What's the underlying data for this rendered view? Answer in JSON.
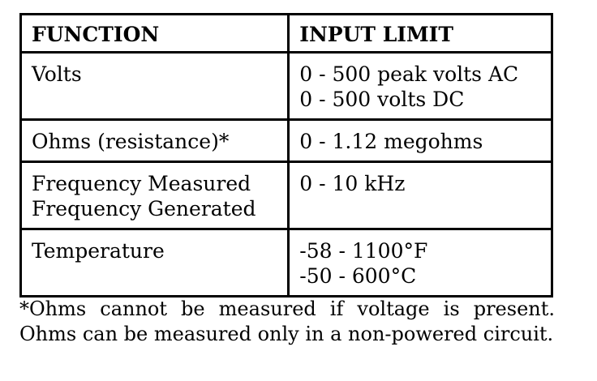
{
  "table": {
    "headers": {
      "function": "FUNCTION",
      "input_limit": "INPUT LIMIT"
    },
    "rows": [
      {
        "function": [
          "Volts"
        ],
        "limit": [
          "0 - 500 peak volts AC",
          "0 - 500 volts DC"
        ]
      },
      {
        "function": [
          "Ohms (resistance)*"
        ],
        "limit": [
          "0 - 1.12 megohms"
        ]
      },
      {
        "function": [
          "Frequency Measured",
          "Frequency Generated"
        ],
        "limit": [
          "0 - 10 kHz"
        ]
      },
      {
        "function": [
          "Temperature"
        ],
        "limit": [
          "-58 - 1100°F",
          "-50 - 600°C"
        ]
      }
    ]
  },
  "footnote": "*Ohms cannot be measured if voltage is present. Ohms can be measured only in a non-powered circuit."
}
